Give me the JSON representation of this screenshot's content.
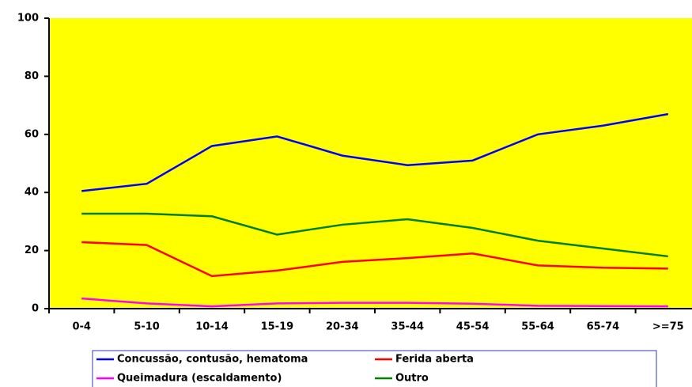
{
  "chart_data": {
    "type": "line",
    "categories": [
      "0-4",
      "5-10",
      "10-14",
      "15-19",
      "20-34",
      "35-44",
      "45-54",
      "55-64",
      "65-74",
      ">=75"
    ],
    "series": [
      {
        "name": "Concussão, contusão, hematoma",
        "color": "#0000ff",
        "values": [
          40.5,
          43,
          56,
          59.3,
          52.7,
          49.4,
          51,
          60,
          63,
          67
        ]
      },
      {
        "name": "Ferida aberta",
        "color": "#ff0000",
        "values": [
          22.9,
          21.9,
          11.2,
          13.1,
          16.1,
          17.4,
          19,
          14.9,
          14.1,
          13.8
        ]
      },
      {
        "name": "Queimadura (escaldamento)",
        "color": "#ff00ff",
        "values": [
          3.5,
          1.8,
          0.8,
          1.8,
          2,
          2,
          1.7,
          1,
          0.9,
          0.8
        ]
      },
      {
        "name": "Outro",
        "color": "#008000",
        "values": [
          32.7,
          32.7,
          31.8,
          25.5,
          28.9,
          30.8,
          27.8,
          23.4,
          20.7,
          18
        ]
      }
    ],
    "ylim": [
      0,
      100
    ],
    "yticks": [
      0,
      20,
      40,
      60,
      80,
      100
    ],
    "plot_background": "#ffff00"
  }
}
